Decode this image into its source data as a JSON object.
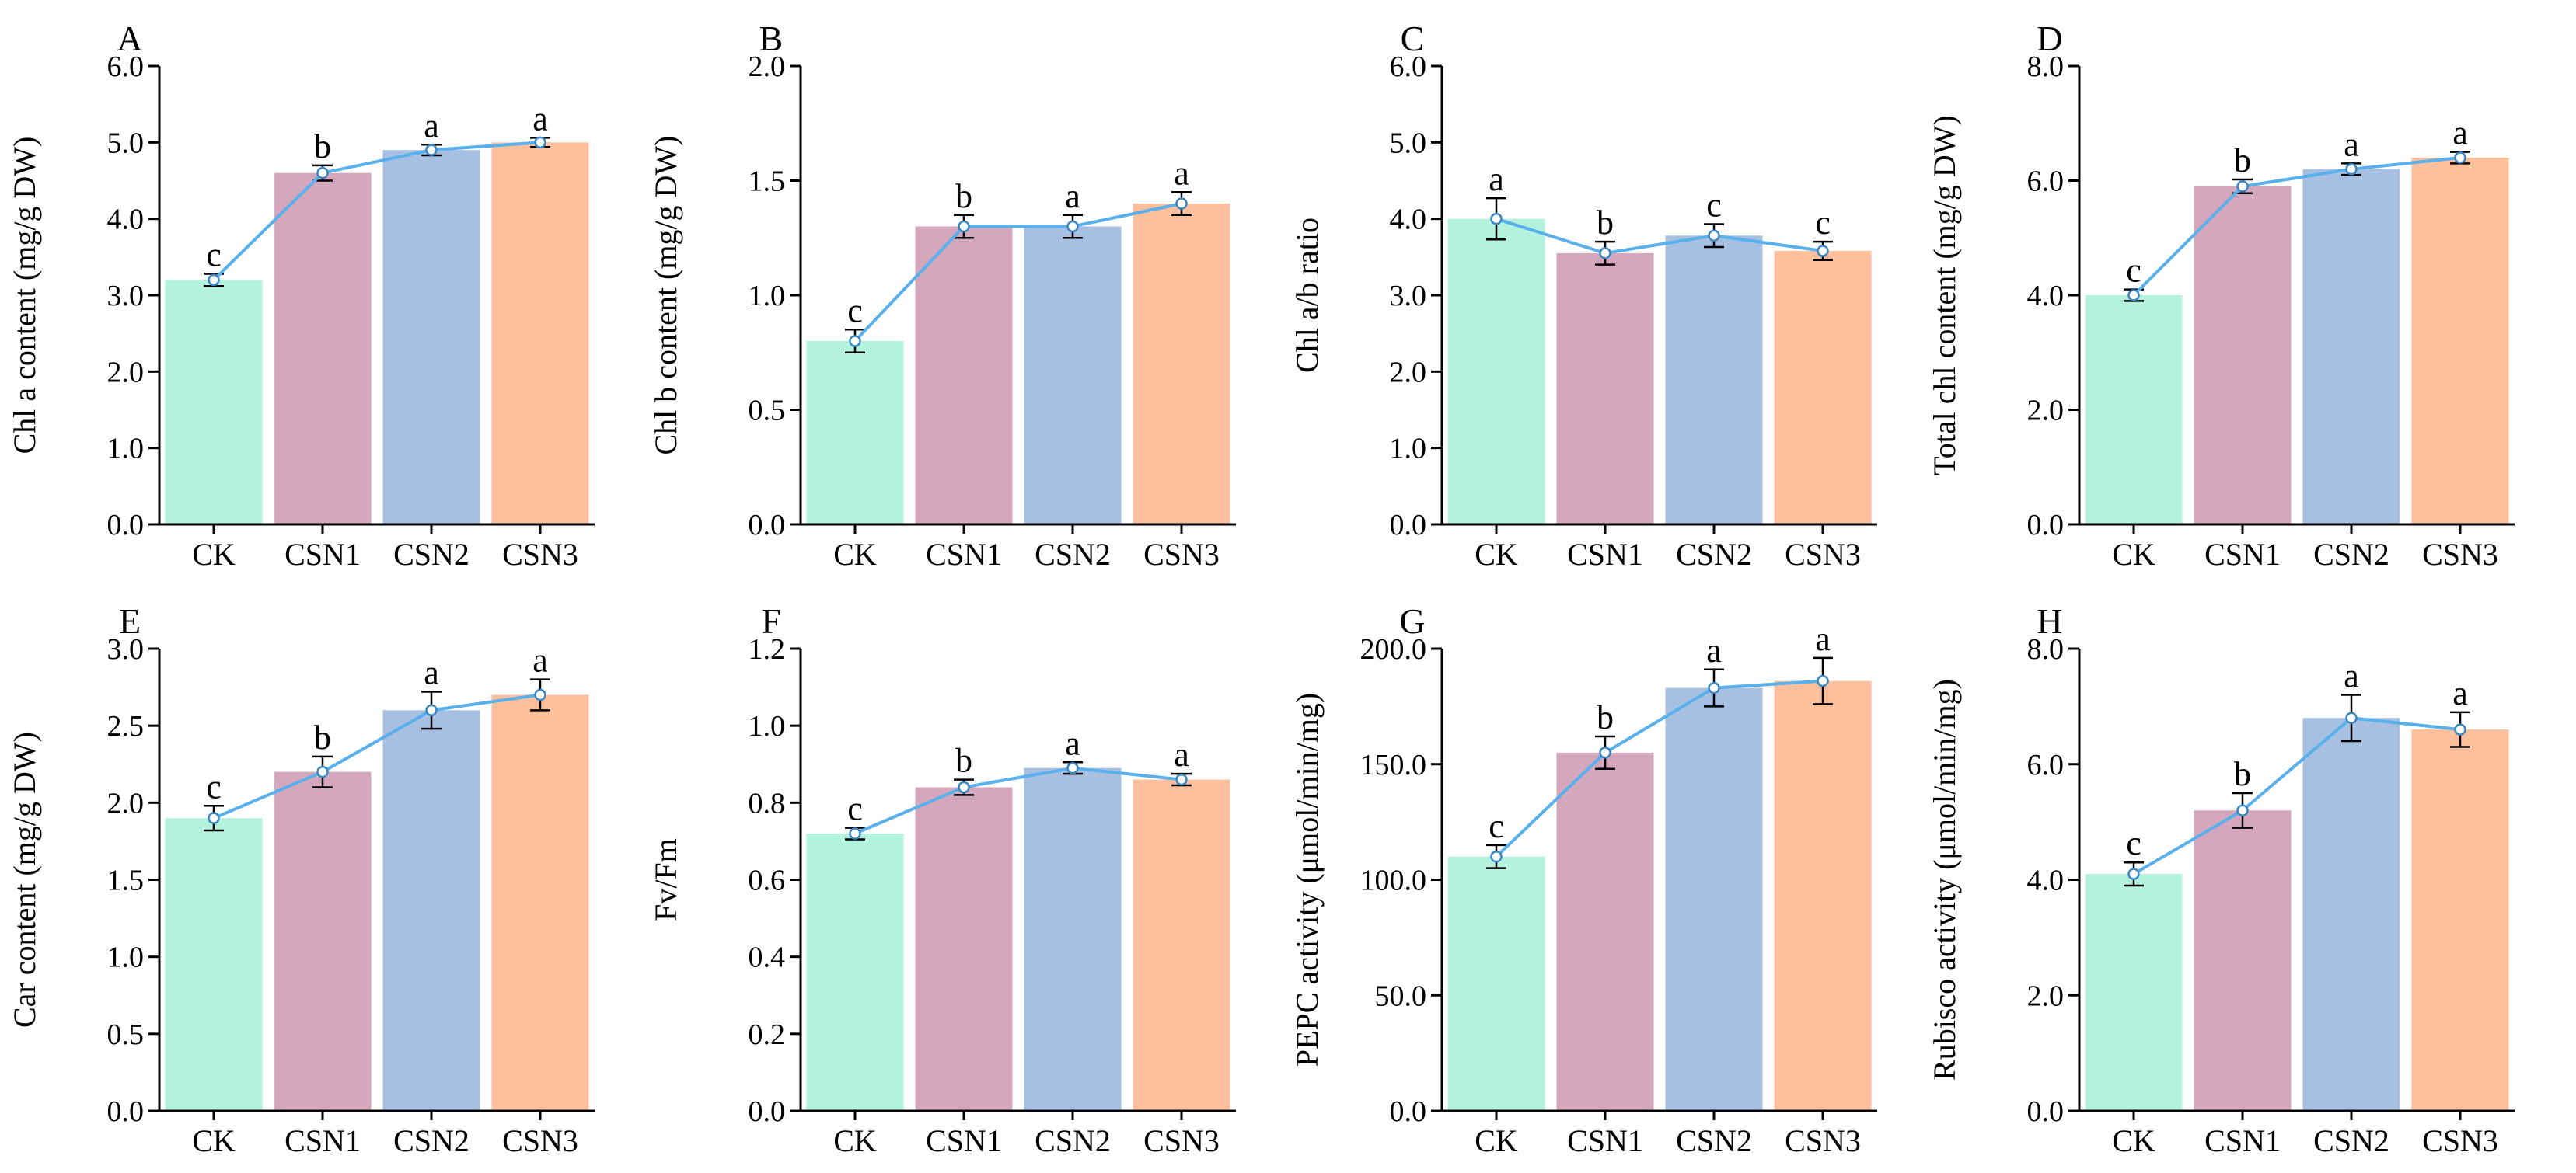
{
  "figure": {
    "categories": [
      "CK",
      "CSN1",
      "CSN2",
      "CSN3"
    ],
    "bar_colors": [
      "#b3f2dd",
      "#d5a7bd",
      "#a7bfe1",
      "#fdbf9c"
    ],
    "line_color": "#5ab0ea",
    "marker_color": "#5ab0ea"
  },
  "chart_data": [
    {
      "panel": "A",
      "type": "bar",
      "ylabel": "Chl a content (mg/g DW)",
      "categories": [
        "CK",
        "CSN1",
        "CSN2",
        "CSN3"
      ],
      "values": [
        3.2,
        4.6,
        4.9,
        5.0
      ],
      "errors": [
        0.08,
        0.1,
        0.07,
        0.06
      ],
      "letters": [
        "c",
        "b",
        "a",
        "a"
      ],
      "ylim": [
        0,
        6
      ],
      "yticks": [
        0,
        1,
        2,
        3,
        4,
        5,
        6
      ],
      "ytick_labels": [
        "0.0",
        "1.0",
        "2.0",
        "3.0",
        "4.0",
        "5.0",
        "6.0"
      ]
    },
    {
      "panel": "B",
      "type": "bar",
      "ylabel": "Chl b content (mg/g DW)",
      "categories": [
        "CK",
        "CSN1",
        "CSN2",
        "CSN3"
      ],
      "values": [
        0.8,
        1.3,
        1.3,
        1.4
      ],
      "errors": [
        0.05,
        0.05,
        0.05,
        0.05
      ],
      "letters": [
        "c",
        "b",
        "a",
        "a"
      ],
      "ylim": [
        0,
        2
      ],
      "yticks": [
        0,
        0.5,
        1,
        1.5,
        2
      ],
      "ytick_labels": [
        "0.0",
        "0.5",
        "1.0",
        "1.5",
        "2.0"
      ]
    },
    {
      "panel": "C",
      "type": "bar",
      "ylabel": "Chl a/b ratio",
      "categories": [
        "CK",
        "CSN1",
        "CSN2",
        "CSN3"
      ],
      "values": [
        4.0,
        3.55,
        3.78,
        3.58
      ],
      "errors": [
        0.27,
        0.15,
        0.15,
        0.12
      ],
      "letters": [
        "a",
        "b",
        "c",
        "c"
      ],
      "ylim": [
        0,
        6
      ],
      "yticks": [
        0,
        1,
        2,
        3,
        4,
        5,
        6
      ],
      "ytick_labels": [
        "0.0",
        "1.0",
        "2.0",
        "3.0",
        "4.0",
        "5.0",
        "6.0"
      ]
    },
    {
      "panel": "D",
      "type": "bar",
      "ylabel": "Total chl content (mg/g DW)",
      "categories": [
        "CK",
        "CSN1",
        "CSN2",
        "CSN3"
      ],
      "values": [
        4.0,
        5.9,
        6.2,
        6.4
      ],
      "errors": [
        0.1,
        0.12,
        0.1,
        0.1
      ],
      "letters": [
        "c",
        "b",
        "a",
        "a"
      ],
      "ylim": [
        0,
        8
      ],
      "yticks": [
        0,
        2,
        4,
        6,
        8
      ],
      "ytick_labels": [
        "0.0",
        "2.0",
        "4.0",
        "6.0",
        "8.0"
      ]
    },
    {
      "panel": "E",
      "type": "bar",
      "ylabel": "Car content (mg/g DW)",
      "categories": [
        "CK",
        "CSN1",
        "CSN2",
        "CSN3"
      ],
      "values": [
        1.9,
        2.2,
        2.6,
        2.7
      ],
      "errors": [
        0.08,
        0.1,
        0.12,
        0.1
      ],
      "letters": [
        "c",
        "b",
        "a",
        "a"
      ],
      "ylim": [
        0,
        3
      ],
      "yticks": [
        0,
        0.5,
        1,
        1.5,
        2,
        2.5,
        3
      ],
      "ytick_labels": [
        "0.0",
        "0.5",
        "1.0",
        "1.5",
        "2.0",
        "2.5",
        "3.0"
      ]
    },
    {
      "panel": "F",
      "type": "bar",
      "ylabel": "Fv/Fm",
      "categories": [
        "CK",
        "CSN1",
        "CSN2",
        "CSN3"
      ],
      "values": [
        0.72,
        0.84,
        0.89,
        0.86
      ],
      "errors": [
        0.015,
        0.02,
        0.015,
        0.015
      ],
      "letters": [
        "c",
        "b",
        "a",
        "a"
      ],
      "ylim": [
        0,
        1.2
      ],
      "yticks": [
        0,
        0.2,
        0.4,
        0.6,
        0.8,
        1.0,
        1.2
      ],
      "ytick_labels": [
        "0.0",
        "0.2",
        "0.4",
        "0.6",
        "0.8",
        "1.0",
        "1.2"
      ]
    },
    {
      "panel": "G",
      "type": "bar",
      "ylabel": "PEPC activity (μmol/min/mg)",
      "categories": [
        "CK",
        "CSN1",
        "CSN2",
        "CSN3"
      ],
      "values": [
        110,
        155,
        183,
        186
      ],
      "errors": [
        5,
        7,
        8,
        10
      ],
      "letters": [
        "c",
        "b",
        "a",
        "a"
      ],
      "ylim": [
        0,
        200
      ],
      "yticks": [
        0,
        50,
        100,
        150,
        200
      ],
      "ytick_labels": [
        "0.0",
        "50.0",
        "100.0",
        "150.0",
        "200.0"
      ]
    },
    {
      "panel": "H",
      "type": "bar",
      "ylabel": "Rubisco activity (μmol/min/mg)",
      "categories": [
        "CK",
        "CSN1",
        "CSN2",
        "CSN3"
      ],
      "values": [
        4.1,
        5.2,
        6.8,
        6.6
      ],
      "errors": [
        0.2,
        0.3,
        0.4,
        0.3
      ],
      "letters": [
        "c",
        "b",
        "a",
        "a"
      ],
      "ylim": [
        0,
        8
      ],
      "yticks": [
        0,
        2,
        4,
        6,
        8
      ],
      "ytick_labels": [
        "0.0",
        "2.0",
        "4.0",
        "6.0",
        "8.0"
      ]
    }
  ]
}
